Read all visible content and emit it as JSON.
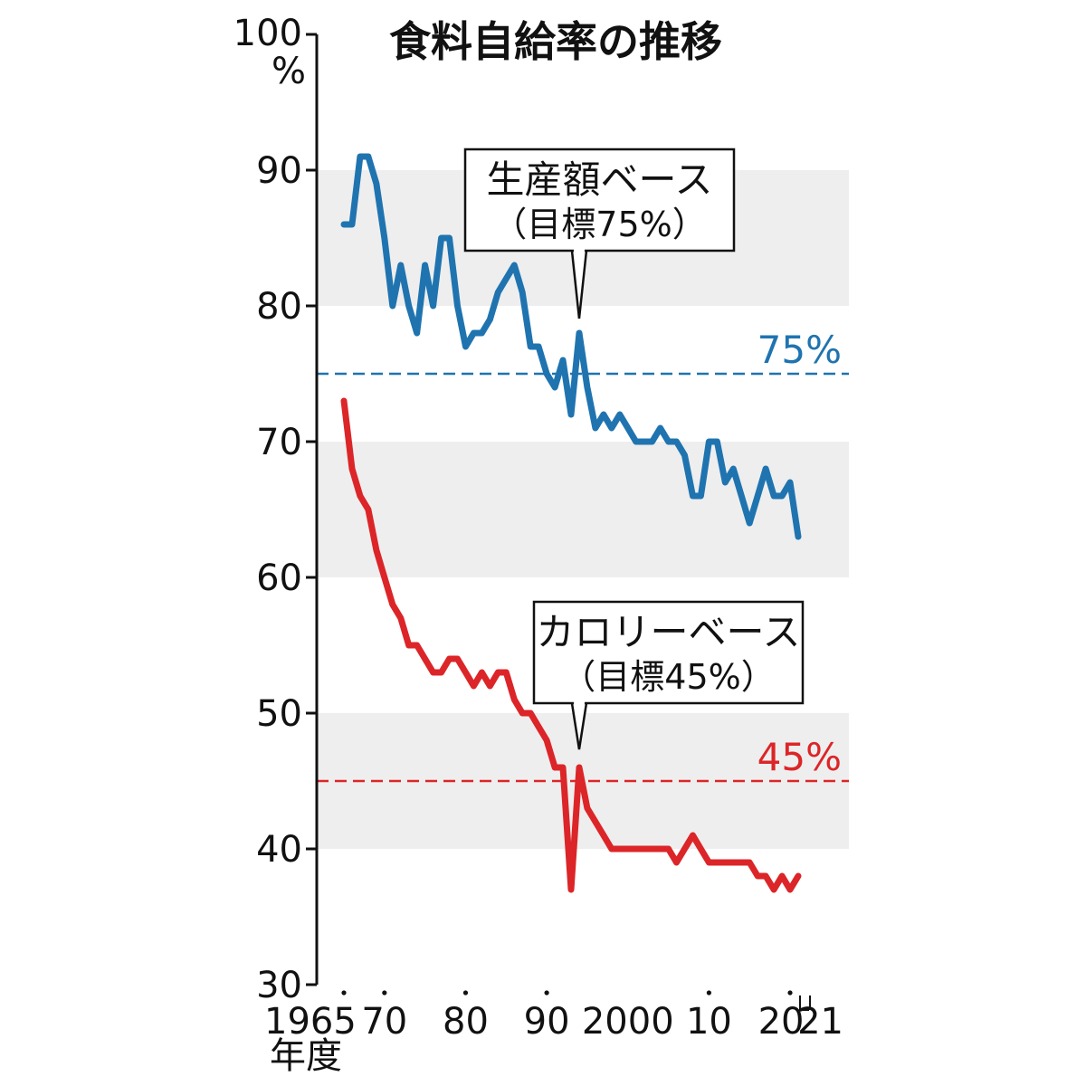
{
  "chart_data": {
    "type": "line",
    "title": "食料自給率の推移",
    "ylabel_unit": "%",
    "xlabel_unit": "年度",
    "ylim": [
      30,
      100
    ],
    "xlim": [
      1965,
      2021
    ],
    "y_ticks": [
      {
        "value": 30,
        "label": "30"
      },
      {
        "value": 40,
        "label": "40"
      },
      {
        "value": 50,
        "label": "50"
      },
      {
        "value": 60,
        "label": "60"
      },
      {
        "value": 70,
        "label": "70"
      },
      {
        "value": 80,
        "label": "80"
      },
      {
        "value": 90,
        "label": "90"
      },
      {
        "value": 100,
        "label": "100"
      }
    ],
    "x_ticks": [
      {
        "value": 1965,
        "label": "1965"
      },
      {
        "value": 1970,
        "label": "70"
      },
      {
        "value": 1980,
        "label": "80"
      },
      {
        "value": 1990,
        "label": "90"
      },
      {
        "value": 2000,
        "label": "2000"
      },
      {
        "value": 2010,
        "label": "10"
      },
      {
        "value": 2020,
        "label": "20"
      },
      {
        "value": 2021,
        "label": "21"
      }
    ],
    "x_tick_marker_years": [
      1965,
      1970,
      1980,
      1990,
      2010,
      2020
    ],
    "bands": [
      [
        40,
        50
      ],
      [
        60,
        70
      ],
      [
        80,
        90
      ]
    ],
    "band_color": "#eeeeee",
    "series": [
      {
        "key": "production",
        "name": "生産額ベース",
        "color": "#1f74b0",
        "x": [
          1965,
          1966,
          1967,
          1968,
          1969,
          1970,
          1971,
          1972,
          1973,
          1974,
          1975,
          1976,
          1977,
          1978,
          1979,
          1980,
          1981,
          1982,
          1983,
          1984,
          1985,
          1986,
          1987,
          1988,
          1989,
          1990,
          1991,
          1992,
          1993,
          1994,
          1995,
          1996,
          1997,
          1998,
          1999,
          2000,
          2001,
          2002,
          2003,
          2004,
          2005,
          2006,
          2007,
          2008,
          2009,
          2010,
          2011,
          2012,
          2013,
          2014,
          2015,
          2016,
          2017,
          2018,
          2019,
          2020,
          2021
        ],
        "values": [
          86,
          86,
          91,
          91,
          89,
          85,
          80,
          83,
          80,
          78,
          83,
          80,
          85,
          85,
          80,
          77,
          78,
          78,
          79,
          81,
          82,
          83,
          81,
          77,
          77,
          75,
          74,
          76,
          72,
          78,
          74,
          71,
          72,
          71,
          72,
          71,
          70,
          70,
          70,
          71,
          70,
          70,
          69,
          66,
          66,
          70,
          70,
          67,
          68,
          66,
          64,
          66,
          68,
          66,
          66,
          67,
          63
        ],
        "callout": {
          "line1": "生産額ベース",
          "line2": "（目標75%）",
          "point_year": 1994,
          "point_value": 78
        },
        "target": {
          "value": 75,
          "label": "75%"
        }
      },
      {
        "key": "calorie",
        "name": "カロリーベース",
        "color": "#dc2528",
        "x": [
          1965,
          1966,
          1967,
          1968,
          1969,
          1970,
          1971,
          1972,
          1973,
          1974,
          1975,
          1976,
          1977,
          1978,
          1979,
          1980,
          1981,
          1982,
          1983,
          1984,
          1985,
          1986,
          1987,
          1988,
          1989,
          1990,
          1991,
          1992,
          1993,
          1994,
          1995,
          1996,
          1997,
          1998,
          1999,
          2000,
          2001,
          2002,
          2003,
          2004,
          2005,
          2006,
          2007,
          2008,
          2009,
          2010,
          2011,
          2012,
          2013,
          2014,
          2015,
          2016,
          2017,
          2018,
          2019,
          2020,
          2021
        ],
        "values": [
          73,
          68,
          66,
          65,
          62,
          60,
          58,
          57,
          55,
          55,
          54,
          53,
          53,
          54,
          54,
          53,
          52,
          53,
          52,
          53,
          53,
          51,
          50,
          50,
          49,
          48,
          46,
          46,
          37,
          46,
          43,
          42,
          41,
          40,
          40,
          40,
          40,
          40,
          40,
          40,
          40,
          39,
          40,
          41,
          40,
          39,
          39,
          39,
          39,
          39,
          39,
          38,
          38,
          37,
          38,
          37,
          38
        ],
        "callout": {
          "line1": "カロリーベース",
          "line2": "（目標45%）",
          "point_year": 1994,
          "point_value": 46
        },
        "target": {
          "value": 45,
          "label": "45%"
        }
      }
    ]
  }
}
